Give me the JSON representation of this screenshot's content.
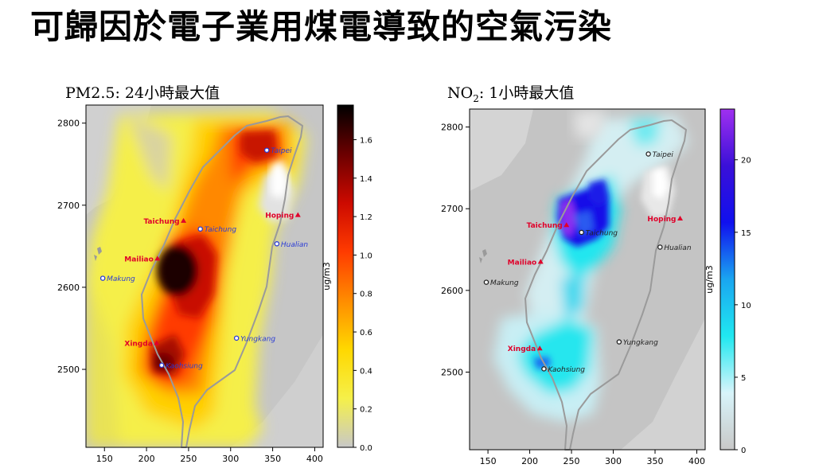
{
  "title": "可歸因於電子業用煤電導致的空氣污染",
  "colors": {
    "taiwan_outline": "#9a9a9a",
    "site_red": "#e0002a",
    "city_blue": "#2a3bd6",
    "city_black": "#222222"
  },
  "maps": [
    {
      "id": "pm25",
      "title": "PM2.5: 24小時最大值",
      "title_main": "PM2.5",
      "title_sub": "",
      "title_rest": ": 24小時最大值",
      "colorbar": {
        "label": "ug/m3",
        "ticks": [
          "0.0",
          "0.2",
          "0.4",
          "0.6",
          "0.8",
          "1.0",
          "1.2",
          "1.4",
          "1.6"
        ],
        "tick_values": [
          0.0,
          0.2,
          0.4,
          0.6,
          0.8,
          1.0,
          1.2,
          1.4,
          1.6
        ],
        "max": 1.78,
        "gradient": [
          "#c8c8c8",
          "#f5f04a",
          "#ffd800",
          "#ff8c00",
          "#ff3b00",
          "#cc0a00",
          "#6b0000",
          "#000000"
        ]
      },
      "x_ticks": [
        "150",
        "200",
        "250",
        "300",
        "350",
        "400"
      ],
      "x_tick_values": [
        150,
        200,
        250,
        300,
        350,
        400
      ],
      "y_ticks": [
        "2500",
        "2600",
        "2700",
        "2800"
      ],
      "y_tick_values": [
        2500,
        2600,
        2700,
        2800
      ],
      "x_range": [
        128,
        410
      ],
      "y_range": [
        2405,
        2822
      ],
      "city_label_color": "#2a3bd6",
      "labels": [
        {
          "name": "Taipei",
          "type": "city",
          "x": 343,
          "y": 2767
        },
        {
          "name": "Taichung",
          "type": "city",
          "x": 264,
          "y": 2671
        },
        {
          "name": "Hualian",
          "type": "city",
          "x": 355,
          "y": 2653
        },
        {
          "name": "Makung",
          "type": "city",
          "x": 148,
          "y": 2611
        },
        {
          "name": "Yungkang",
          "type": "city",
          "x": 307,
          "y": 2538
        },
        {
          "name": "Kaohsiung",
          "type": "city",
          "x": 218,
          "y": 2505
        },
        {
          "name": "Taichung",
          "type": "site",
          "x": 244,
          "y": 2681
        },
        {
          "name": "Hoping",
          "type": "site",
          "x": 380,
          "y": 2688
        },
        {
          "name": "Mailiao",
          "type": "site",
          "x": 213,
          "y": 2635
        },
        {
          "name": "Xingda",
          "type": "site",
          "x": 212,
          "y": 2532
        }
      ]
    },
    {
      "id": "no2",
      "title": "NO2: 1小時最大值",
      "title_main": "NO",
      "title_sub": "2",
      "title_rest": ": 1小時最大值",
      "colorbar": {
        "label": "ug/m3",
        "ticks": [
          "0",
          "5",
          "10",
          "15",
          "20"
        ],
        "tick_values": [
          0,
          5,
          10,
          15,
          20
        ],
        "max": 23.5,
        "gradient": [
          "#c8c8c8",
          "#d8f4fa",
          "#20e8f0",
          "#1aa6f0",
          "#1010ee",
          "#3a10d8",
          "#a030f0"
        ]
      },
      "x_ticks": [
        "150",
        "200",
        "250",
        "300",
        "350",
        "400"
      ],
      "x_tick_values": [
        150,
        200,
        250,
        300,
        350,
        400
      ],
      "y_ticks": [
        "2500",
        "2600",
        "2700",
        "2800"
      ],
      "y_tick_values": [
        2500,
        2600,
        2700,
        2800
      ],
      "x_range": [
        128,
        410
      ],
      "y_range": [
        2405,
        2822
      ],
      "city_label_color": "#222222",
      "labels": [
        {
          "name": "Taipei",
          "type": "city",
          "x": 342,
          "y": 2767
        },
        {
          "name": "Taichung",
          "type": "city",
          "x": 262,
          "y": 2671
        },
        {
          "name": "Hualian",
          "type": "city",
          "x": 356,
          "y": 2653
        },
        {
          "name": "Makung",
          "type": "city",
          "x": 148,
          "y": 2610
        },
        {
          "name": "Yungkang",
          "type": "city",
          "x": 307,
          "y": 2537
        },
        {
          "name": "Kaohsiung",
          "type": "city",
          "x": 217,
          "y": 2504
        },
        {
          "name": "Taichung",
          "type": "site",
          "x": 244,
          "y": 2680
        },
        {
          "name": "Hoping",
          "type": "site",
          "x": 380,
          "y": 2688
        },
        {
          "name": "Mailiao",
          "type": "site",
          "x": 213,
          "y": 2635
        },
        {
          "name": "Xingda",
          "type": "site",
          "x": 212,
          "y": 2529
        }
      ]
    }
  ]
}
